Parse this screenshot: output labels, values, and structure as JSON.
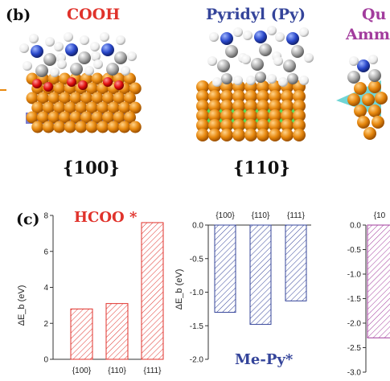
{
  "panel_b": {
    "label": "(b)",
    "cooh": {
      "title": "COOH",
      "facet": "{100}",
      "color": "#e0322b"
    },
    "pyridyl": {
      "title": "Pyridyl (Py)",
      "facet": "{110}",
      "color": "#34449a"
    },
    "quat": {
      "title_line1": "Qu",
      "title_line2": "Amm",
      "color": "#a23c9d"
    }
  },
  "panel_c": {
    "label": "(c)"
  },
  "chart_data": [
    {
      "type": "bar",
      "title": "HCOO *",
      "title_color": "#e0322b",
      "bar_color": "#e0322b",
      "ylabel": "ΔE_b (eV)",
      "categories": [
        "{100}",
        "{110}",
        "{111}"
      ],
      "values": [
        2.8,
        3.1,
        7.6
      ],
      "ylim": [
        0,
        8
      ],
      "yticks": [
        "0",
        "2",
        "4",
        "6",
        "8"
      ],
      "yticks_values": [
        0,
        2,
        4,
        6,
        8
      ],
      "grid": false
    },
    {
      "type": "bar",
      "title": "Me-Py*",
      "title_color": "#34449a",
      "bar_color": "#34449a",
      "ylabel": "ΔE_b (eV)",
      "categories": [
        "{100}",
        "{110}",
        "{111}"
      ],
      "values": [
        -1.3,
        -1.48,
        -1.13
      ],
      "ylim": [
        -2.0,
        0.0
      ],
      "yticks": [
        "0.0",
        "-0.5",
        "-1.0",
        "-1.5",
        "-2.0"
      ],
      "yticks_values": [
        0,
        -0.5,
        -1.0,
        -1.5,
        -2.0
      ],
      "grid": false
    },
    {
      "type": "bar",
      "title": "",
      "bar_color": "#a23c9d",
      "categories": [
        "{10"
      ],
      "values": [
        -2.3
      ],
      "ylim": [
        -3.0,
        0.0
      ],
      "yticks": [
        "0.0",
        "-0.5",
        "-1.0",
        "-1.5",
        "-2.0",
        "-2.5",
        "-3.0"
      ],
      "yticks_values": [
        0,
        -0.5,
        -1.0,
        -1.5,
        -2.0,
        -2.5,
        -3.0
      ],
      "grid": false
    }
  ]
}
